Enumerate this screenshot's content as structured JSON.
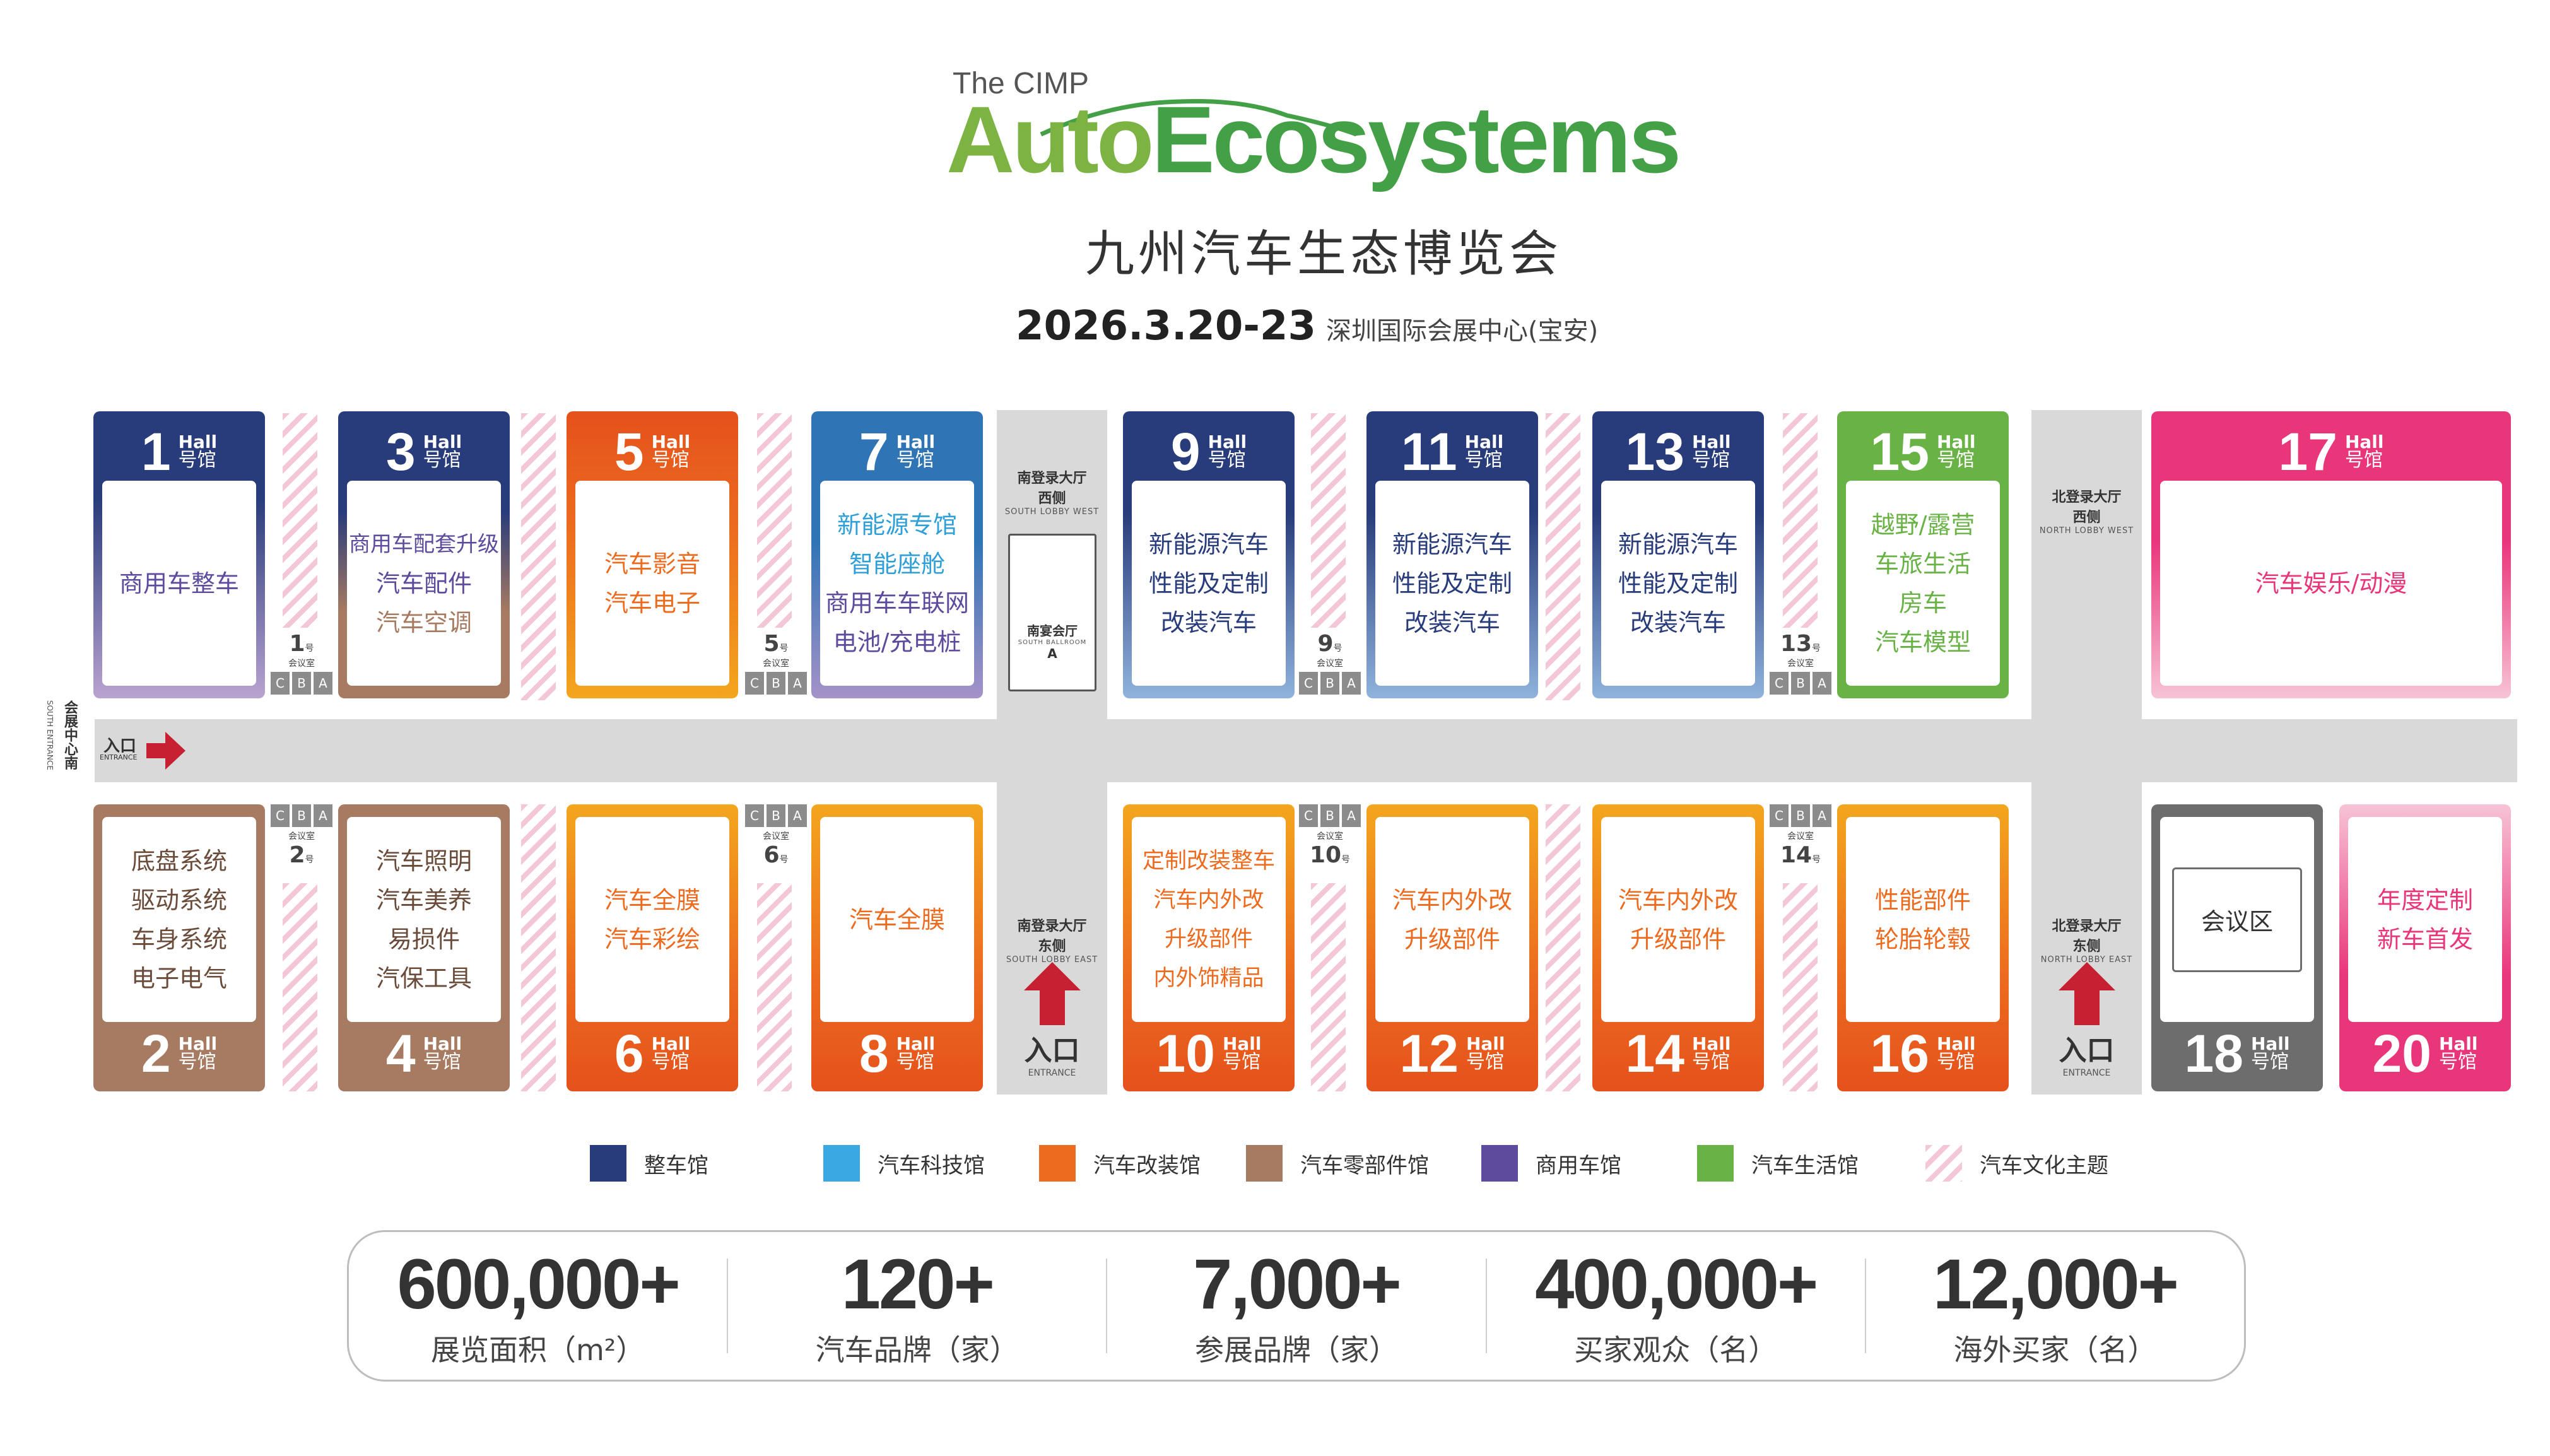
{
  "header": {
    "brand_small": "The CIMP",
    "brand_part1": "Auto",
    "brand_part2": "Ecosystems",
    "subtitle": "九州汽车生态博览会",
    "date": "2026.3.20-23",
    "venue": "深圳国际会展中心(宝安)"
  },
  "colors": {
    "vehicle": "#283b7a",
    "tech": "#2f74b5",
    "modify": "#ec6b1f",
    "parts": "#a77b62",
    "commercial": "#5e4b9e",
    "life": "#69b346",
    "culture": "#f3c6d8",
    "entertainment": "#e9357a",
    "meeting": "#6d6d6d"
  },
  "common": {
    "hall_en": "Hall",
    "hall_cn": "号馆"
  },
  "halls": {
    "h1": {
      "num": "1",
      "lines": [
        "商用车整车"
      ]
    },
    "h3": {
      "num": "3",
      "lines": [
        "商用车配套升级",
        "汽车配件",
        "汽车空调"
      ]
    },
    "h5": {
      "num": "5",
      "lines": [
        "汽车影音",
        "汽车电子"
      ]
    },
    "h7": {
      "num": "7",
      "lines": [
        "新能源专馆",
        "智能座舱",
        "商用车车联网",
        "电池/充电桩"
      ]
    },
    "h9": {
      "num": "9",
      "lines": [
        "新能源汽车",
        "性能及定制",
        "改装汽车"
      ]
    },
    "h11": {
      "num": "11",
      "lines": [
        "新能源汽车",
        "性能及定制",
        "改装汽车"
      ]
    },
    "h13": {
      "num": "13",
      "lines": [
        "新能源汽车",
        "性能及定制",
        "改装汽车"
      ]
    },
    "h15": {
      "num": "15",
      "lines": [
        "越野/露营",
        "车旅生活",
        "房车",
        "汽车模型"
      ]
    },
    "h17": {
      "num": "17",
      "lines": [
        "汽车娱乐/动漫"
      ]
    },
    "h2": {
      "num": "2",
      "lines": [
        "底盘系统",
        "驱动系统",
        "车身系统",
        "电子电气"
      ]
    },
    "h4": {
      "num": "4",
      "lines": [
        "汽车照明",
        "汽车美养",
        "易损件",
        "汽保工具"
      ]
    },
    "h6": {
      "num": "6",
      "lines": [
        "汽车全膜",
        "汽车彩绘"
      ]
    },
    "h8": {
      "num": "8",
      "lines": [
        "汽车全膜"
      ]
    },
    "h10": {
      "num": "10",
      "lines": [
        "定制改装整车",
        "汽车内外改",
        "升级部件",
        "内外饰精品"
      ]
    },
    "h12": {
      "num": "12",
      "lines": [
        "汽车内外改",
        "升级部件"
      ]
    },
    "h14": {
      "num": "14",
      "lines": [
        "汽车内外改",
        "升级部件"
      ]
    },
    "h16": {
      "num": "16",
      "lines": [
        "性能部件",
        "轮胎轮毂"
      ]
    },
    "h18": {
      "num": "18",
      "lines": [
        "会议区"
      ]
    },
    "h20": {
      "num": "20",
      "lines": [
        "年度定制",
        "新车首发"
      ]
    }
  },
  "meeting_rooms": {
    "label": "会议室",
    "m1": "1",
    "m5": "5",
    "m9": "9",
    "m13": "13",
    "m2": "2",
    "m6": "6",
    "m10": "10",
    "m14": "14",
    "c": "C",
    "b": "B",
    "a": "A"
  },
  "lobbies": {
    "south_west_cn": "南登录大厅",
    "south_west_cn2": "西侧",
    "south_west_en": "SOUTH LOBBY WEST",
    "ballroom_cn": "南宴会厅",
    "ballroom_en": "SOUTH BALLROOM",
    "ballroom_letter": "A",
    "south_east_cn": "南登录大厅",
    "south_east_cn2": "东侧",
    "south_east_en": "SOUTH LOBBY EAST",
    "north_west_cn": "北登录大厅",
    "north_west_cn2": "西侧",
    "north_west_en": "NORTH LOBBY WEST",
    "north_east_cn": "北登录大厅",
    "north_east_cn2": "东侧",
    "north_east_en": "NORTH LOBBY EAST",
    "entrance_cn": "入口",
    "entrance_en": "ENTRANCE",
    "south_entrance_cn": "会展中心南",
    "south_entrance_en": "SOUTH ENTRANCE"
  },
  "legend": [
    {
      "label": "整车馆",
      "color": "#283b7a"
    },
    {
      "label": "汽车科技馆",
      "color": "#3aa8e2"
    },
    {
      "label": "汽车改装馆",
      "color": "#ec6b1f"
    },
    {
      "label": "汽车零部件馆",
      "color": "#a77b62"
    },
    {
      "label": "商用车馆",
      "color": "#5e4b9e"
    },
    {
      "label": "汽车生活馆",
      "color": "#69b346"
    },
    {
      "label": "汽车文化主题",
      "color": "#f3c6d8"
    }
  ],
  "stats": [
    {
      "value": "600,000+",
      "label": "展览面积（m²）"
    },
    {
      "value": "120+",
      "label": "汽车品牌（家）"
    },
    {
      "value": "7,000+",
      "label": "参展品牌（家）"
    },
    {
      "value": "400,000+",
      "label": "买家观众（名）"
    },
    {
      "value": "12,000+",
      "label": "海外买家（名）"
    }
  ]
}
